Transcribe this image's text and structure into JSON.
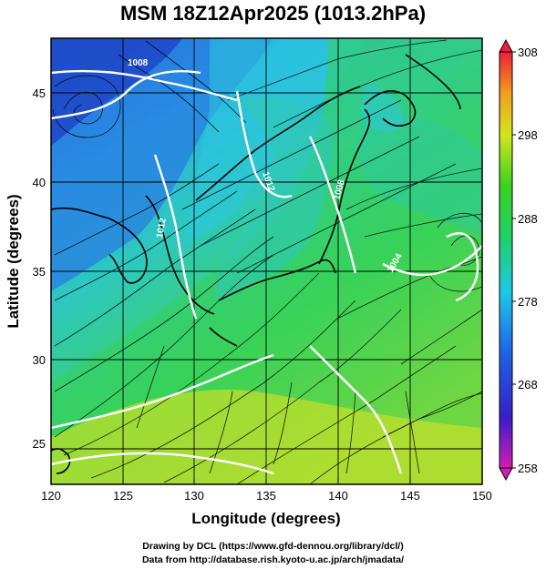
{
  "title": "MSM 18Z12Apr2025 (1013.2hPa)",
  "axes": {
    "xlabel": "Longitude (degrees)",
    "ylabel": "Latitude  (degrees)",
    "x_ticks": [
      "120",
      "125",
      "130",
      "135",
      "140",
      "145",
      "150"
    ],
    "y_ticks": [
      "25",
      "30",
      "35",
      "40",
      "45"
    ]
  },
  "colorbar": {
    "ticks": [
      "308",
      "298",
      "288",
      "278",
      "268",
      "258"
    ],
    "min": 258,
    "max": 308
  },
  "isobar_labels": [
    "1008",
    "1012",
    "1012",
    "1008",
    "1004"
  ],
  "credits": {
    "line1": "Drawing by DCL (https://www.gfd-dennou.org/library/dcl/)",
    "line2": "Data from http://database.rish.kyoto-u.ac.jp/arch/jmadata/"
  },
  "colors": {
    "cold": "#1e50d2",
    "cool": "#2ec8e6",
    "mild": "#2fcf5a",
    "warm": "#d7e91e",
    "hot": "#f0503c"
  }
}
